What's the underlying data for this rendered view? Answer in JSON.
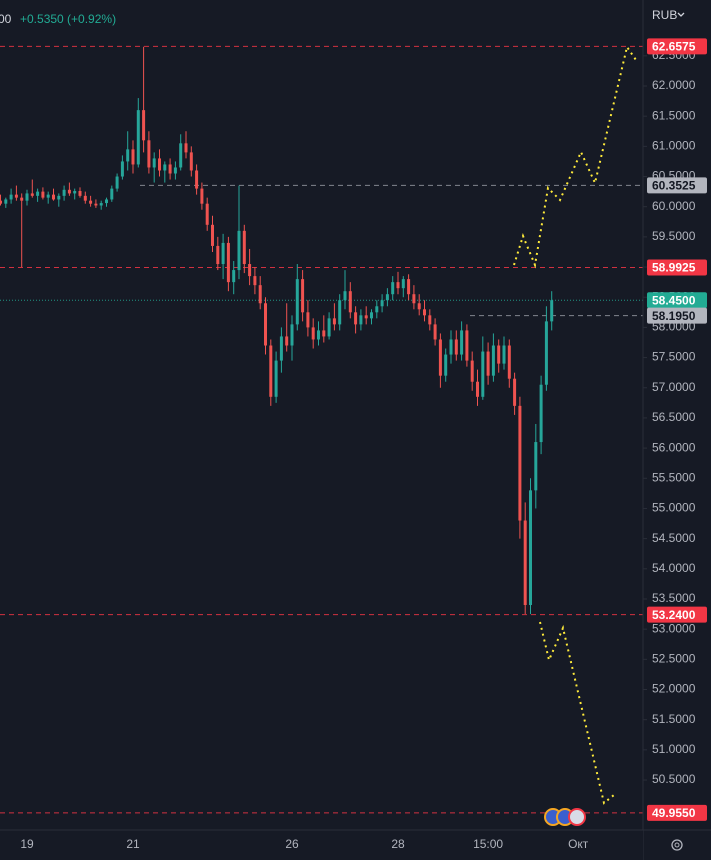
{
  "chart_data": {
    "type": "candlestick",
    "header_price_tail": "00",
    "header_change": "+0.5350 (+0.92%)",
    "currency": "RUB",
    "up_color": "#26a69a",
    "down_color": "#ef5350",
    "grid": false,
    "ylim": [
      49.672,
      63.425
    ],
    "yticks": [
      {
        "value": 50.5,
        "label": "50.5000"
      },
      {
        "value": 51,
        "label": "51.0000"
      },
      {
        "value": 51.5,
        "label": "51.5000"
      },
      {
        "value": 52,
        "label": "52.0000"
      },
      {
        "value": 52.5,
        "label": "52.5000"
      },
      {
        "value": 53,
        "label": "53.0000"
      },
      {
        "value": 53.5,
        "label": "53.5000"
      },
      {
        "value": 54,
        "label": "54.0000"
      },
      {
        "value": 54.5,
        "label": "54.5000"
      },
      {
        "value": 55,
        "label": "55.0000"
      },
      {
        "value": 55.5,
        "label": "55.5000"
      },
      {
        "value": 56,
        "label": "56.0000"
      },
      {
        "value": 56.5,
        "label": "56.5000"
      },
      {
        "value": 57,
        "label": "57.0000"
      },
      {
        "value": 57.5,
        "label": "57.5000"
      },
      {
        "value": 58,
        "label": "58.0000"
      },
      {
        "value": 58.5,
        "label": "58.5000"
      },
      {
        "value": 59,
        "label": "59.0000"
      },
      {
        "value": 59.5,
        "label": "59.5000"
      },
      {
        "value": 60,
        "label": "60.0000"
      },
      {
        "value": 60.5,
        "label": "60.5000"
      },
      {
        "value": 61,
        "label": "61.0000"
      },
      {
        "value": 61.5,
        "label": "61.5000"
      },
      {
        "value": 62,
        "label": "62.0000"
      },
      {
        "value": 62.5,
        "label": "62.5000"
      }
    ],
    "levels": [
      {
        "value": 62.6575,
        "label": "62.6575",
        "color": "#f23645"
      },
      {
        "value": 60.3525,
        "label": "60.3525",
        "color": "#9598a1"
      },
      {
        "value": 58.9925,
        "label": "58.9925",
        "color": "#f23645"
      },
      {
        "value": 58.45,
        "label": "58.4500",
        "color": "#22ab94"
      },
      {
        "value": 58.195,
        "label": "58.1950",
        "color": "#9598a1"
      },
      {
        "value": 53.24,
        "label": "53.2400",
        "color": "#f23645"
      },
      {
        "value": 49.955,
        "label": "49.9550",
        "color": "#f23645"
      }
    ],
    "categories": [
      null,
      null,
      null,
      null,
      null,
      "19",
      null,
      null,
      null,
      null,
      null,
      null,
      null,
      null,
      null,
      null,
      null,
      null,
      null,
      null,
      null,
      null,
      null,
      null,
      null,
      "21",
      null,
      null,
      null,
      null,
      null,
      null,
      null,
      null,
      null,
      null,
      null,
      null,
      null,
      null,
      null,
      null,
      null,
      null,
      null,
      null,
      null,
      null,
      null,
      null,
      null,
      null,
      null,
      null,
      null,
      "26",
      null,
      null,
      null,
      null,
      null,
      null,
      null,
      null,
      null,
      null,
      null,
      null,
      null,
      null,
      null,
      null,
      null,
      null,
      null,
      "28",
      null,
      null,
      null,
      null,
      null,
      null,
      null,
      null,
      null,
      null,
      null,
      null,
      null,
      null,
      null,
      null,
      "15:00",
      null,
      null,
      null,
      null,
      null,
      null,
      null,
      null,
      null,
      null,
      null,
      null,
      null,
      null,
      null,
      null,
      "Окт",
      null
    ],
    "candles": [
      [
        60.1,
        60.2,
        60.02,
        60.05
      ],
      [
        60.05,
        60.15,
        59.98,
        60.12
      ],
      [
        60.12,
        60.3,
        60.05,
        60.2
      ],
      [
        60.2,
        60.35,
        60.1,
        60.15
      ],
      [
        60.15,
        60.22,
        59.0,
        60.1
      ],
      [
        60.1,
        60.28,
        60.02,
        60.22
      ],
      [
        60.22,
        60.45,
        60.15,
        60.18
      ],
      [
        60.18,
        60.3,
        60.08,
        60.25
      ],
      [
        60.25,
        60.32,
        60.12,
        60.15
      ],
      [
        60.15,
        60.25,
        60.05,
        60.2
      ],
      [
        60.2,
        60.3,
        60.1,
        60.12
      ],
      [
        60.12,
        60.22,
        60.0,
        60.18
      ],
      [
        60.18,
        60.35,
        60.1,
        60.28
      ],
      [
        60.28,
        60.4,
        60.18,
        60.22
      ],
      [
        60.22,
        60.3,
        60.12,
        60.26
      ],
      [
        60.26,
        60.32,
        60.15,
        60.18
      ],
      [
        60.18,
        60.25,
        60.05,
        60.1
      ],
      [
        60.1,
        60.18,
        60.0,
        60.05
      ],
      [
        60.05,
        60.12,
        59.98,
        60.02
      ],
      [
        60.02,
        60.1,
        59.95,
        60.06
      ],
      [
        60.06,
        60.15,
        60.0,
        60.12
      ],
      [
        60.12,
        60.35,
        60.08,
        60.3
      ],
      [
        60.3,
        60.55,
        60.25,
        60.5
      ],
      [
        60.5,
        60.85,
        60.45,
        60.75
      ],
      [
        60.75,
        61.25,
        60.6,
        60.95
      ],
      [
        60.95,
        61.1,
        60.55,
        60.7
      ],
      [
        60.7,
        61.8,
        60.65,
        61.6
      ],
      [
        61.6,
        62.65,
        60.9,
        61.1
      ],
      [
        61.1,
        61.25,
        60.55,
        60.65
      ],
      [
        60.65,
        60.9,
        60.4,
        60.8
      ],
      [
        60.8,
        60.95,
        60.5,
        60.6
      ],
      [
        60.6,
        60.75,
        60.4,
        60.7
      ],
      [
        60.7,
        60.8,
        60.45,
        60.55
      ],
      [
        60.55,
        60.75,
        60.45,
        60.65
      ],
      [
        60.65,
        61.2,
        60.6,
        61.05
      ],
      [
        61.05,
        61.25,
        60.8,
        60.9
      ],
      [
        60.9,
        61.0,
        60.5,
        60.6
      ],
      [
        60.6,
        60.7,
        60.2,
        60.3
      ],
      [
        60.3,
        60.4,
        59.95,
        60.05
      ],
      [
        60.05,
        60.15,
        59.6,
        59.7
      ],
      [
        59.7,
        59.85,
        59.25,
        59.35
      ],
      [
        59.35,
        59.5,
        58.95,
        59.05
      ],
      [
        59.05,
        59.55,
        58.8,
        59.4
      ],
      [
        59.4,
        59.5,
        58.6,
        58.75
      ],
      [
        58.75,
        59.1,
        58.55,
        58.95
      ],
      [
        58.95,
        60.35,
        58.8,
        59.6
      ],
      [
        59.6,
        59.7,
        58.9,
        59.05
      ],
      [
        59.05,
        59.3,
        58.7,
        58.85
      ],
      [
        58.85,
        59.0,
        58.55,
        58.7
      ],
      [
        58.7,
        58.85,
        58.3,
        58.4
      ],
      [
        58.4,
        58.5,
        57.55,
        57.7
      ],
      [
        57.7,
        57.8,
        56.7,
        56.85
      ],
      [
        56.85,
        57.6,
        56.75,
        57.45
      ],
      [
        57.45,
        58.0,
        57.25,
        57.85
      ],
      [
        57.85,
        58.4,
        57.6,
        57.7
      ],
      [
        57.7,
        58.2,
        57.45,
        58.05
      ],
      [
        58.05,
        59.05,
        57.95,
        58.8
      ],
      [
        58.8,
        58.95,
        58.1,
        58.25
      ],
      [
        58.25,
        58.45,
        57.85,
        58.0
      ],
      [
        58.0,
        58.15,
        57.65,
        57.8
      ],
      [
        57.8,
        58.1,
        57.7,
        57.95
      ],
      [
        57.95,
        58.2,
        57.75,
        57.85
      ],
      [
        57.85,
        58.25,
        57.8,
        58.15
      ],
      [
        58.15,
        58.4,
        57.95,
        58.05
      ],
      [
        58.05,
        58.55,
        57.95,
        58.45
      ],
      [
        58.45,
        58.95,
        58.3,
        58.6
      ],
      [
        58.6,
        58.75,
        58.15,
        58.25
      ],
      [
        58.25,
        58.35,
        57.9,
        58.05
      ],
      [
        58.05,
        58.3,
        57.95,
        58.2
      ],
      [
        58.2,
        58.35,
        58.05,
        58.15
      ],
      [
        58.15,
        58.3,
        58.05,
        58.25
      ],
      [
        58.25,
        58.45,
        58.15,
        58.35
      ],
      [
        58.35,
        58.55,
        58.25,
        58.45
      ],
      [
        58.45,
        58.65,
        58.35,
        58.55
      ],
      [
        58.55,
        58.85,
        58.45,
        58.75
      ],
      [
        58.75,
        58.92,
        58.55,
        58.65
      ],
      [
        58.65,
        58.85,
        58.5,
        58.8
      ],
      [
        58.8,
        58.88,
        58.45,
        58.55
      ],
      [
        58.55,
        58.7,
        58.3,
        58.4
      ],
      [
        58.4,
        58.55,
        58.2,
        58.3
      ],
      [
        58.3,
        58.45,
        58.1,
        58.2
      ],
      [
        58.2,
        58.3,
        57.95,
        58.05
      ],
      [
        58.05,
        58.15,
        57.7,
        57.8
      ],
      [
        57.8,
        57.9,
        57.0,
        57.2
      ],
      [
        57.2,
        57.65,
        57.1,
        57.55
      ],
      [
        57.55,
        57.95,
        57.4,
        57.8
      ],
      [
        57.8,
        57.95,
        57.45,
        57.55
      ],
      [
        57.55,
        58.1,
        57.45,
        57.95
      ],
      [
        57.95,
        58.05,
        57.35,
        57.45
      ],
      [
        57.45,
        57.6,
        56.95,
        57.1
      ],
      [
        57.1,
        57.3,
        56.7,
        56.85
      ],
      [
        56.85,
        57.85,
        56.8,
        57.6
      ],
      [
        57.6,
        57.75,
        57.05,
        57.2
      ],
      [
        57.2,
        57.9,
        57.1,
        57.7
      ],
      [
        57.7,
        57.8,
        57.25,
        57.4
      ],
      [
        57.4,
        57.85,
        57.3,
        57.7
      ],
      [
        57.7,
        57.8,
        57.0,
        57.15
      ],
      [
        57.15,
        57.25,
        56.55,
        56.7
      ],
      [
        56.7,
        56.85,
        54.5,
        54.8
      ],
      [
        54.8,
        55.1,
        53.25,
        53.4
      ],
      [
        53.4,
        55.5,
        53.25,
        55.3
      ],
      [
        55.3,
        56.4,
        55.0,
        56.1
      ],
      [
        56.1,
        57.2,
        55.9,
        57.05
      ],
      [
        57.05,
        58.35,
        56.95,
        58.1
      ],
      [
        58.1,
        58.6,
        57.95,
        58.45
      ],
      null,
      null,
      null,
      null,
      null,
      null
    ]
  }
}
